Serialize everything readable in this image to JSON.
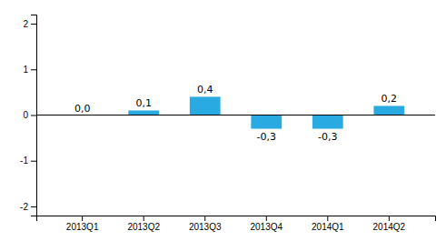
{
  "chart_data": {
    "type": "bar",
    "categories": [
      "2013Q1",
      "2013Q2",
      "2013Q3",
      "2013Q4",
      "2014Q1",
      "2014Q2"
    ],
    "values": [
      0.0,
      0.1,
      0.4,
      -0.3,
      -0.3,
      0.2
    ],
    "value_labels": [
      "0,0",
      "0,1",
      "0,4",
      "-0,3",
      "-0,3",
      "0,2"
    ],
    "data_labels": true,
    "color": "#29abe2",
    "ylim": [
      -2.2,
      2.2
    ],
    "yticks": [
      -2,
      -1,
      0,
      1,
      2
    ],
    "grid": false
  }
}
